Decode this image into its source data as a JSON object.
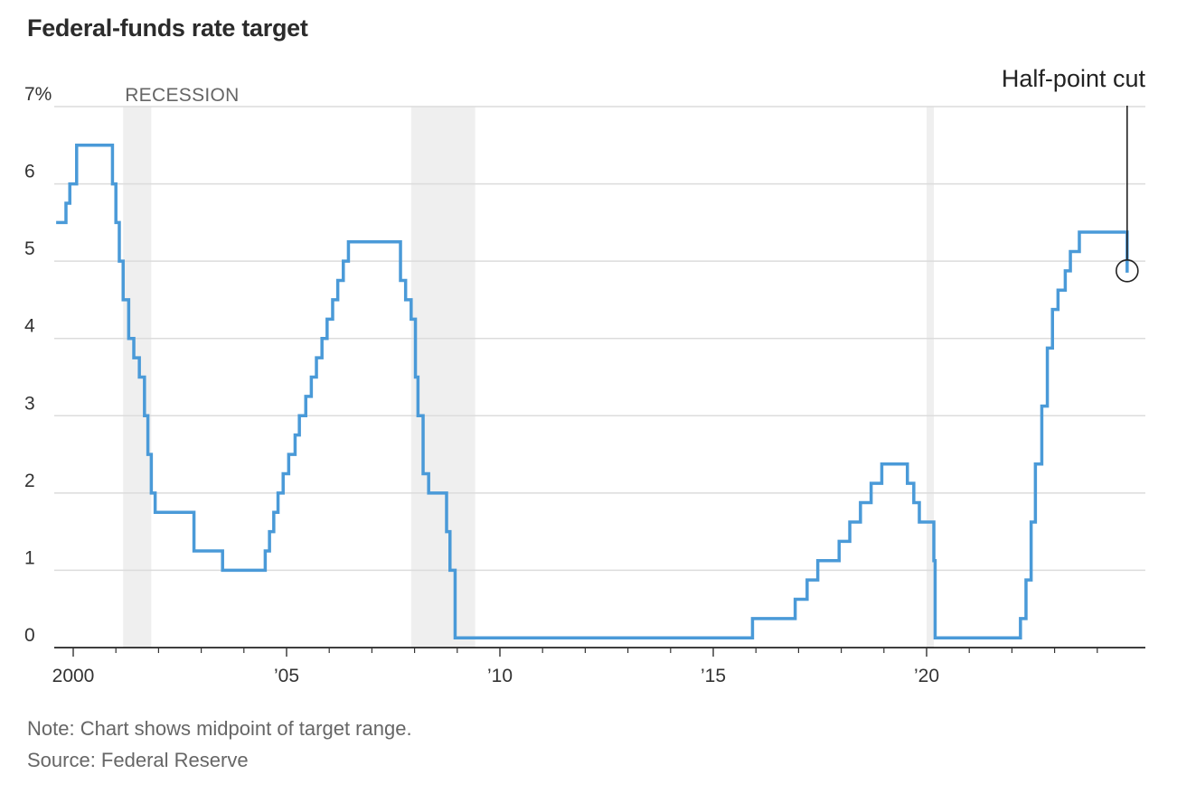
{
  "chart_data": {
    "type": "line",
    "step": true,
    "title": "Federal-funds rate target",
    "ylabel": "",
    "xlabel": "",
    "ylim": [
      0,
      7
    ],
    "xlim": [
      1999.4,
      2024.9
    ],
    "y_ticks": [
      {
        "value": 0,
        "label": "0"
      },
      {
        "value": 1,
        "label": "1"
      },
      {
        "value": 2,
        "label": "2"
      },
      {
        "value": 3,
        "label": "3"
      },
      {
        "value": 4,
        "label": "4"
      },
      {
        "value": 5,
        "label": "5"
      },
      {
        "value": 6,
        "label": "6"
      },
      {
        "value": 7,
        "label": "7%"
      }
    ],
    "x_ticks": [
      {
        "value": 2000,
        "label": "2000"
      },
      {
        "value": 2005,
        "label": "’05"
      },
      {
        "value": 2010,
        "label": "’10"
      },
      {
        "value": 2015,
        "label": "’15"
      },
      {
        "value": 2020,
        "label": "’20"
      }
    ],
    "x_minor_ticks": [
      2001,
      2002,
      2003,
      2004,
      2006,
      2007,
      2008,
      2009,
      2011,
      2012,
      2013,
      2014,
      2016,
      2017,
      2018,
      2019,
      2021,
      2022,
      2023,
      2024
    ],
    "recession_label": "RECESSION",
    "recessions": [
      {
        "start": 2001.17,
        "end": 2001.83
      },
      {
        "start": 2007.92,
        "end": 2009.42
      },
      {
        "start": 2020.0,
        "end": 2020.17
      }
    ],
    "series": [
      {
        "name": "Federal-funds rate target (midpoint)",
        "color": "#4a9ad8",
        "points": [
          [
            1999.6,
            5.5
          ],
          [
            1999.83,
            5.75
          ],
          [
            1999.92,
            6.0
          ],
          [
            2000.08,
            6.5
          ],
          [
            2000.92,
            6.0
          ],
          [
            2001.0,
            5.5
          ],
          [
            2001.08,
            5.0
          ],
          [
            2001.17,
            4.5
          ],
          [
            2001.3,
            4.0
          ],
          [
            2001.42,
            3.75
          ],
          [
            2001.55,
            3.5
          ],
          [
            2001.67,
            3.0
          ],
          [
            2001.75,
            2.5
          ],
          [
            2001.83,
            2.0
          ],
          [
            2001.92,
            1.75
          ],
          [
            2002.83,
            1.25
          ],
          [
            2003.5,
            1.0
          ],
          [
            2004.5,
            1.25
          ],
          [
            2004.6,
            1.5
          ],
          [
            2004.7,
            1.75
          ],
          [
            2004.8,
            2.0
          ],
          [
            2004.92,
            2.25
          ],
          [
            2005.05,
            2.5
          ],
          [
            2005.2,
            2.75
          ],
          [
            2005.3,
            3.0
          ],
          [
            2005.45,
            3.25
          ],
          [
            2005.58,
            3.5
          ],
          [
            2005.7,
            3.75
          ],
          [
            2005.83,
            4.0
          ],
          [
            2005.95,
            4.25
          ],
          [
            2006.08,
            4.5
          ],
          [
            2006.2,
            4.75
          ],
          [
            2006.33,
            5.0
          ],
          [
            2006.45,
            5.25
          ],
          [
            2007.67,
            4.75
          ],
          [
            2007.79,
            4.5
          ],
          [
            2007.92,
            4.25
          ],
          [
            2008.02,
            3.5
          ],
          [
            2008.08,
            3.0
          ],
          [
            2008.2,
            2.25
          ],
          [
            2008.33,
            2.0
          ],
          [
            2008.75,
            1.5
          ],
          [
            2008.83,
            1.0
          ],
          [
            2008.95,
            0.125
          ],
          [
            2015.92,
            0.375
          ],
          [
            2016.92,
            0.625
          ],
          [
            2017.2,
            0.875
          ],
          [
            2017.45,
            1.125
          ],
          [
            2017.95,
            1.375
          ],
          [
            2018.2,
            1.625
          ],
          [
            2018.45,
            1.875
          ],
          [
            2018.7,
            2.125
          ],
          [
            2018.95,
            2.375
          ],
          [
            2019.55,
            2.125
          ],
          [
            2019.7,
            1.875
          ],
          [
            2019.83,
            1.625
          ],
          [
            2020.17,
            1.125
          ],
          [
            2020.2,
            0.125
          ],
          [
            2022.2,
            0.375
          ],
          [
            2022.33,
            0.875
          ],
          [
            2022.45,
            1.625
          ],
          [
            2022.55,
            2.375
          ],
          [
            2022.7,
            3.125
          ],
          [
            2022.83,
            3.875
          ],
          [
            2022.95,
            4.375
          ],
          [
            2023.08,
            4.625
          ],
          [
            2023.25,
            4.875
          ],
          [
            2023.37,
            5.125
          ],
          [
            2023.58,
            5.375
          ],
          [
            2024.7,
            4.875
          ]
        ]
      }
    ],
    "annotation": {
      "text": "Half-point cut",
      "x": 2024.7,
      "y": 4.875
    }
  },
  "footer": {
    "note": "Note: Chart shows midpoint of target range.",
    "source": "Source: Federal Reserve"
  }
}
